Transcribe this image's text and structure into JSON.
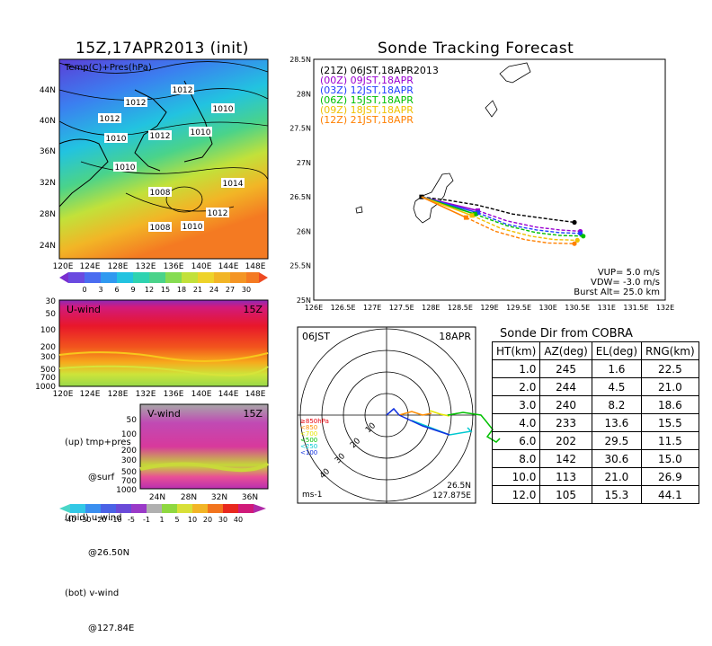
{
  "map_panel": {
    "title": "15Z,17APR2013 (init)",
    "field_label": "Temp(C)+Pres(hPa)",
    "lat_labels": [
      "44N",
      "40N",
      "36N",
      "32N",
      "28N",
      "24N"
    ],
    "lon_labels": [
      "120E",
      "124E",
      "128E",
      "132E",
      "136E",
      "140E",
      "144E",
      "148E"
    ],
    "isobar_labels": [
      "1012",
      "1012",
      "1012",
      "1010",
      "1010",
      "1012",
      "1010",
      "1010",
      "1008",
      "1014",
      "1012",
      "1008",
      "1010"
    ],
    "temp_colorbar": [
      "0",
      "3",
      "6",
      "9",
      "12",
      "15",
      "18",
      "21",
      "24",
      "27",
      "30"
    ]
  },
  "u_wind_panel": {
    "label": "U-wind",
    "time": "15Z",
    "pressure_labels": [
      "30",
      "50",
      "100",
      "200",
      "300",
      "500",
      "700",
      "1000"
    ],
    "lon_labels": [
      "120E",
      "124E",
      "128E",
      "132E",
      "136E",
      "140E",
      "144E",
      "148E"
    ]
  },
  "v_wind_panel": {
    "label": "V-wind",
    "time": "15Z",
    "pressure_labels": [
      "50",
      "100",
      "200",
      "300",
      "500",
      "700",
      "1000"
    ],
    "lat_labels": [
      "24N",
      "28N",
      "32N",
      "36N"
    ]
  },
  "legend_notes": {
    "up_line1": "(up) tmp+pres",
    "up_line2": "@surf",
    "mid_line1": "(mid) u-wind",
    "mid_line2": "@26.50N",
    "bot_line1": "(bot) v-wind",
    "bot_line2": "@127.84E"
  },
  "wind_colorbar": [
    "-40",
    "-30",
    "-20",
    "-10",
    "-5",
    "-1",
    "1",
    "5",
    "10",
    "20",
    "30",
    "40"
  ],
  "tracking": {
    "title": "Sonde Tracking Forecast",
    "vup": "VUP= 5.0 m/s",
    "vdw": "VDW= -3.0 m/s",
    "burst": "Burst Alt= 25.0 km"
  },
  "polar": {
    "time_label": "06JST",
    "date_label": "18APR",
    "units": "ms-1",
    "lat": "26.5N",
    "lon": "127.875E",
    "ring_labels": [
      "10",
      "20",
      "30",
      "40"
    ],
    "level_legend": [
      {
        "label": "≥850hPa",
        "color": "#e8000b"
      },
      {
        "label": "<850",
        "color": "#ff8c00"
      },
      {
        "label": "<700",
        "color": "#e6e600"
      },
      {
        "label": "<500",
        "color": "#00c000"
      },
      {
        "label": "<250",
        "color": "#00c8d0"
      },
      {
        "label": "<100",
        "color": "#1030e0"
      }
    ]
  },
  "sonde_table": {
    "title": "Sonde Dir from COBRA",
    "headers": [
      "HT(km)",
      "AZ(deg)",
      "EL(deg)",
      "RNG(km)"
    ],
    "rows": [
      [
        "1.0",
        "245",
        "1.6",
        "22.5"
      ],
      [
        "2.0",
        "244",
        "4.5",
        "21.0"
      ],
      [
        "3.0",
        "240",
        "8.2",
        "18.6"
      ],
      [
        "4.0",
        "233",
        "13.6",
        "15.5"
      ],
      [
        "6.0",
        "202",
        "29.5",
        "11.5"
      ],
      [
        "8.0",
        "142",
        "30.6",
        "15.0"
      ],
      [
        "10.0",
        "113",
        "21.0",
        "26.9"
      ],
      [
        "12.0",
        "105",
        "15.3",
        "44.1"
      ]
    ]
  },
  "chart_data": [
    {
      "type": "line",
      "title": "Sonde Tracking Forecast",
      "xlabel": "",
      "ylabel": "",
      "xlim": [
        126,
        132
      ],
      "ylim": [
        25,
        28.5
      ],
      "x_ticks": [
        "126E",
        "126.5E",
        "127E",
        "127.5E",
        "128E",
        "128.5E",
        "129E",
        "129.5E",
        "130E",
        "130.5E",
        "131E",
        "131.5E",
        "132E"
      ],
      "y_ticks": [
        "25N",
        "25.5N",
        "26N",
        "26.5N",
        "27N",
        "27.5N",
        "28N",
        "28.5N"
      ],
      "legend_position": "top-left",
      "series": [
        {
          "name": "(21Z) 06JST,18APR2013",
          "color": "#000000",
          "x": [
            127.84,
            128.3,
            128.8,
            129.4,
            130.0,
            130.45
          ],
          "y": [
            26.5,
            26.45,
            26.38,
            26.25,
            26.18,
            26.13
          ]
        },
        {
          "name": "(00Z) 09JST,18APR",
          "color": "#9a00d0",
          "x": [
            128.8,
            129.3,
            129.8,
            130.2,
            130.55
          ],
          "y": [
            26.3,
            26.15,
            26.06,
            26.02,
            26.0
          ]
        },
        {
          "name": "(03Z) 12JST,18APR",
          "color": "#2040ff",
          "x": [
            128.8,
            129.3,
            129.8,
            130.2,
            130.55
          ],
          "y": [
            26.27,
            26.1,
            26.02,
            25.98,
            25.97
          ]
        },
        {
          "name": "(06Z) 15JST,18APR",
          "color": "#00c000",
          "x": [
            128.75,
            129.3,
            129.8,
            130.2,
            130.6
          ],
          "y": [
            26.25,
            26.08,
            25.98,
            25.94,
            25.93
          ]
        },
        {
          "name": "(09Z) 18JST,18APR",
          "color": "#f0c000",
          "x": [
            128.7,
            129.2,
            129.7,
            130.1,
            130.5
          ],
          "y": [
            26.23,
            26.04,
            25.93,
            25.88,
            25.87
          ]
        },
        {
          "name": "(12Z) 21JST,18APR",
          "color": "#ff8000",
          "x": [
            128.6,
            129.1,
            129.6,
            130.0,
            130.45
          ],
          "y": [
            26.2,
            26.0,
            25.88,
            25.83,
            25.82
          ]
        }
      ]
    },
    {
      "type": "table",
      "title": "Sonde Dir from COBRA",
      "columns": [
        "HT(km)",
        "AZ(deg)",
        "EL(deg)",
        "RNG(km)"
      ],
      "rows": [
        [
          1.0,
          245,
          1.6,
          22.5
        ],
        [
          2.0,
          244,
          4.5,
          21.0
        ],
        [
          3.0,
          240,
          8.2,
          18.6
        ],
        [
          4.0,
          233,
          13.6,
          15.5
        ],
        [
          6.0,
          202,
          29.5,
          11.5
        ],
        [
          8.0,
          142,
          30.6,
          15.0
        ],
        [
          10.0,
          113,
          21.0,
          26.9
        ],
        [
          12.0,
          105,
          15.3,
          44.1
        ]
      ]
    }
  ]
}
